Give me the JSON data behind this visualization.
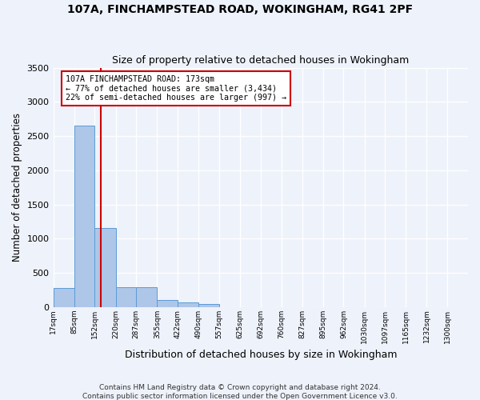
{
  "title1": "107A, FINCHAMPSTEAD ROAD, WOKINGHAM, RG41 2PF",
  "title2": "Size of property relative to detached houses in Wokingham",
  "xlabel": "Distribution of detached houses by size in Wokingham",
  "ylabel": "Number of detached properties",
  "footer1": "Contains HM Land Registry data © Crown copyright and database right 2024.",
  "footer2": "Contains public sector information licensed under the Open Government Licence v3.0.",
  "annotation_line1": "107A FINCHAMPSTEAD ROAD: 173sqm",
  "annotation_line2": "← 77% of detached houses are smaller (3,434)",
  "annotation_line3": "22% of semi-detached houses are larger (997) →",
  "bar_edges": [
    17,
    85,
    152,
    220,
    287,
    355,
    422,
    490,
    557,
    625,
    692,
    760,
    827,
    895,
    962,
    1030,
    1097,
    1165,
    1232,
    1300,
    1367
  ],
  "bar_heights": [
    275,
    2650,
    1150,
    290,
    285,
    100,
    65,
    40,
    0,
    0,
    0,
    0,
    0,
    0,
    0,
    0,
    0,
    0,
    0,
    0
  ],
  "bar_color": "#aec6e8",
  "bar_edgecolor": "#5b9bd5",
  "vline_x": 173,
  "vline_color": "#cc0000",
  "ylim": [
    0,
    3500
  ],
  "yticks": [
    0,
    500,
    1000,
    1500,
    2000,
    2500,
    3000,
    3500
  ],
  "background_color": "#eef2fb",
  "grid_color": "#ffffff",
  "annotation_box_color": "#ffffff",
  "annotation_box_edgecolor": "#cc0000"
}
